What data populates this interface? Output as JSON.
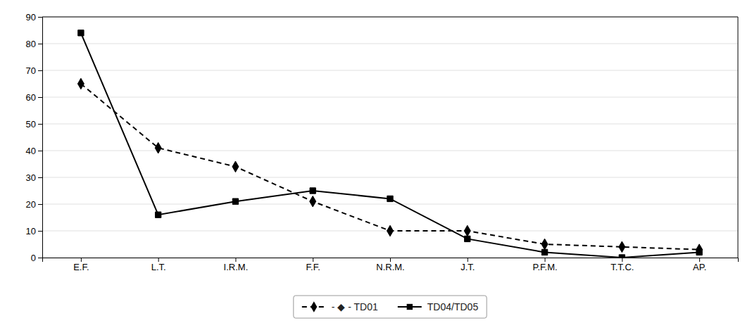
{
  "chart_data": {
    "type": "line",
    "categories": [
      "E.F.",
      "L.T.",
      "I.R.M.",
      "F.F.",
      "N.R.M.",
      "J.T.",
      "P.F.M.",
      "T.T.C.",
      "AP."
    ],
    "series": [
      {
        "name": "- ◆ - TD01",
        "color": "#000000",
        "marker": "diamond",
        "line_style": "dashed",
        "values": [
          65,
          41,
          34,
          21,
          10,
          10,
          5,
          4,
          3
        ]
      },
      {
        "name": "TD04/TD05",
        "color": "#000000",
        "marker": "square",
        "line_style": "solid",
        "values": [
          84,
          16,
          21,
          25,
          22,
          7,
          2,
          0,
          2
        ]
      }
    ],
    "ylim": [
      0,
      90
    ],
    "yticks": [
      0,
      10,
      20,
      30,
      40,
      50,
      60,
      70,
      80,
      90
    ],
    "grid": true,
    "legend": "bottom"
  }
}
